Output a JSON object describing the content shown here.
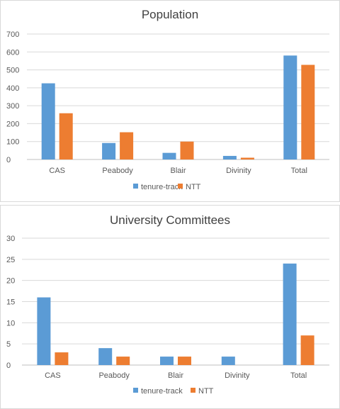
{
  "chart_data": [
    {
      "type": "bar",
      "title": "Population",
      "categories": [
        "CAS",
        "Peabody",
        "Blair",
        "Divinity",
        "Total"
      ],
      "series": [
        {
          "name": "tenure-track",
          "color": "#5b9bd5",
          "values": [
            425,
            92,
            37,
            20,
            580
          ]
        },
        {
          "name": "NTT",
          "color": "#ed7d31",
          "values": [
            258,
            152,
            100,
            10,
            528
          ]
        }
      ],
      "ylim": [
        0,
        700
      ],
      "yticks": [
        0,
        100,
        200,
        300,
        400,
        500,
        600,
        700
      ],
      "xlabel": "",
      "ylabel": "",
      "grid": true,
      "legend": "bottom"
    },
    {
      "type": "bar",
      "title": "University Committees",
      "categories": [
        "CAS",
        "Peabody",
        "Blair",
        "Divinity",
        "Total"
      ],
      "series": [
        {
          "name": "tenure-track",
          "color": "#5b9bd5",
          "values": [
            16,
            4,
            2,
            2,
            24
          ]
        },
        {
          "name": "NTT",
          "color": "#ed7d31",
          "values": [
            3,
            2,
            2,
            0,
            7
          ]
        }
      ],
      "ylim": [
        0,
        30
      ],
      "yticks": [
        0,
        5,
        10,
        15,
        20,
        25,
        30
      ],
      "xlabel": "",
      "ylabel": "",
      "grid": true,
      "legend": "bottom"
    }
  ]
}
